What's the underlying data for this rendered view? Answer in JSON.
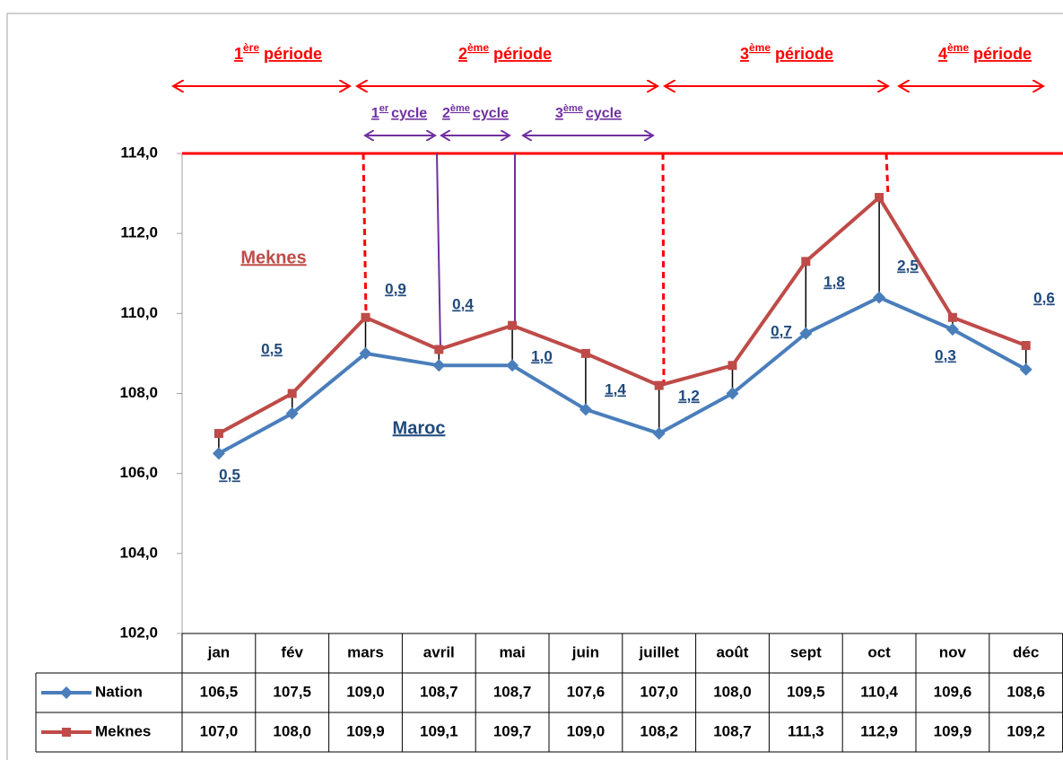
{
  "chart_data": {
    "type": "line",
    "categories": [
      "jan",
      "fév",
      "mars",
      "avril",
      "mai",
      "juin",
      "juillet",
      "août",
      "sept",
      "oct",
      "nov",
      "déc"
    ],
    "series": [
      {
        "name": "Nation",
        "color": "#4a7ebb",
        "marker": "diamond",
        "values": [
          106.5,
          107.5,
          109.0,
          108.7,
          108.7,
          107.6,
          107.0,
          108.0,
          109.5,
          110.4,
          109.6,
          108.6
        ],
        "value_labels": [
          "106,5",
          "107,5",
          "109,0",
          "108,7",
          "108,7",
          "107,6",
          "107,0",
          "108,0",
          "109,5",
          "110,4",
          "109,6",
          "108,6"
        ]
      },
      {
        "name": "Meknes",
        "color": "#be4b48",
        "marker": "square",
        "values": [
          107.0,
          108.0,
          109.9,
          109.1,
          109.7,
          109.0,
          108.2,
          108.7,
          111.3,
          112.9,
          109.9,
          109.2
        ],
        "value_labels": [
          "107,0",
          "108,0",
          "109,9",
          "109,1",
          "109,7",
          "109,0",
          "108,2",
          "108,7",
          "111,3",
          "112,9",
          "109,9",
          "109,2"
        ]
      }
    ],
    "ylim": [
      102,
      114
    ],
    "yticks": [
      {
        "value": 102,
        "label": "102,0"
      },
      {
        "value": 104,
        "label": "104,0"
      },
      {
        "value": 106,
        "label": "106,0"
      },
      {
        "value": 108,
        "label": "108,0"
      },
      {
        "value": 110,
        "label": "110,0"
      },
      {
        "value": 112,
        "label": "112,0"
      },
      {
        "value": 114,
        "label": "114,0"
      }
    ],
    "differences": {
      "values": [
        0.5,
        0.5,
        0.9,
        0.4,
        1.0,
        1.4,
        1.2,
        0.7,
        1.8,
        2.5,
        0.3,
        0.6
      ],
      "value_labels": [
        "0,5",
        "0,5",
        "0,9",
        "0,4",
        "1,0",
        "1,4",
        "1,2",
        "0,7",
        "1,8",
        "2,5",
        "0,3",
        "0,6"
      ]
    },
    "annotations": {
      "meknes": "Meknes",
      "maroc": "Maroc"
    },
    "periods": [
      {
        "num": "1",
        "sup": "ère",
        "text": "période"
      },
      {
        "num": "2",
        "sup": "ème",
        "text": "période"
      },
      {
        "num": "3",
        "sup": "ème",
        "text": "période"
      },
      {
        "num": "4",
        "sup": "ème",
        "text": "période"
      }
    ],
    "cycles": [
      {
        "num": "1",
        "sup": "er",
        "text": "cycle"
      },
      {
        "num": "2",
        "sup": "ème",
        "text": "cycle"
      },
      {
        "num": "3",
        "sup": "ème",
        "text": "cycle"
      }
    ]
  }
}
